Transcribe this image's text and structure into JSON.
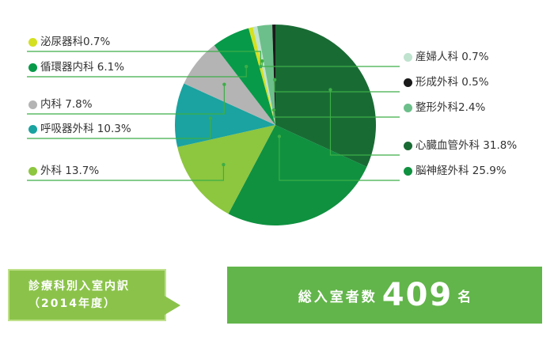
{
  "chart_data": {
    "type": "pie",
    "slices": [
      {
        "name": "心臓血管外科",
        "value": 31.8,
        "label": "心臓血管外科 31.8%",
        "color": "#196b34"
      },
      {
        "name": "脳神経外科",
        "value": 25.9,
        "label": "脳神経外科 25.9%",
        "color": "#0f9140"
      },
      {
        "name": "外科",
        "value": 13.7,
        "label": "外科 13.7%",
        "color": "#8dc63f"
      },
      {
        "name": "呼吸器外科",
        "value": 10.3,
        "label": "呼吸器外科 10.3%",
        "color": "#1aa3a0"
      },
      {
        "name": "内科",
        "value": 7.8,
        "label": "内科 7.8%",
        "color": "#b4b4b4"
      },
      {
        "name": "循環器内科",
        "value": 6.1,
        "label": "循環器内科 6.1%",
        "color": "#079a49"
      },
      {
        "name": "泌尿器科",
        "value": 0.7,
        "label": "泌尿器科0.7%",
        "color": "#d4e021"
      },
      {
        "name": "産婦人科",
        "value": 0.7,
        "label": "産婦人科 0.7%",
        "color": "#bfe3cf"
      },
      {
        "name": "整形外科",
        "value": 2.4,
        "label": "整形外科2.4%",
        "color": "#6cbf8a"
      },
      {
        "name": "形成外科",
        "value": 0.5,
        "label": "形成外科 0.5%",
        "color": "#1a1a1a"
      }
    ]
  },
  "caption": {
    "line1": "診療科別入室内訳",
    "line2": "（2014年度）"
  },
  "total": {
    "label": "総入室者数",
    "value": "409",
    "unit": "名"
  },
  "colors": {
    "leader_line": "#3cae47",
    "caption_bg": "#8bc34a",
    "total_bg": "#62b54a"
  }
}
